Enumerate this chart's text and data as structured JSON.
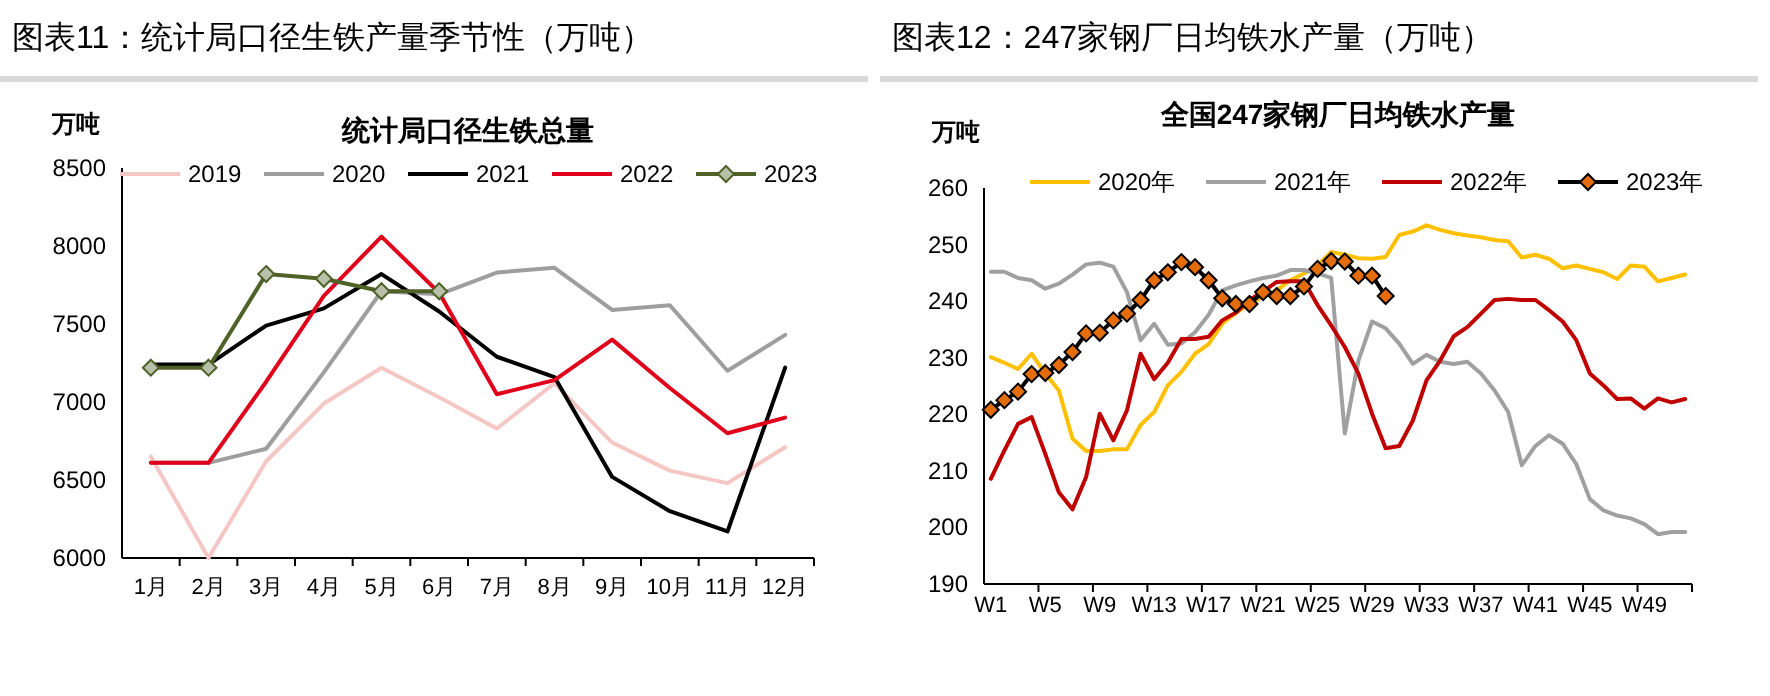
{
  "chart_data": [
    {
      "type": "line",
      "title": "图表11：统计局口径生铁产量季节性（万吨）",
      "subtitle": "统计局口径生铁总量",
      "ylabel": "万吨",
      "categories": [
        "1月",
        "2月",
        "3月",
        "4月",
        "5月",
        "6月",
        "7月",
        "8月",
        "9月",
        "10月",
        "11月",
        "12月"
      ],
      "ylim": [
        6000,
        8500
      ],
      "yticks": [
        6000,
        6500,
        7000,
        7500,
        8000,
        8500
      ],
      "legend": "top",
      "series": [
        {
          "name": "2019",
          "color": "#f4c6c4",
          "values": [
            6650,
            6000,
            6620,
            6990,
            7220,
            7030,
            6830,
            7120,
            6740,
            6560,
            6480,
            6710
          ]
        },
        {
          "name": "2020",
          "color": "#9e9e9e",
          "values": [
            6610,
            6610,
            6700,
            7190,
            7710,
            7690,
            7830,
            7860,
            7590,
            7620,
            7200,
            7430
          ]
        },
        {
          "name": "2021",
          "color": "#000000",
          "values": [
            7240,
            7240,
            7490,
            7600,
            7820,
            7580,
            7290,
            7160,
            6520,
            6300,
            6170,
            7220
          ]
        },
        {
          "name": "2022",
          "color": "#e0001b",
          "values": [
            6610,
            6610,
            7130,
            7680,
            8060,
            7700,
            7050,
            7140,
            7400,
            7090,
            6800,
            6900
          ]
        },
        {
          "name": "2023",
          "color": "#4f6228",
          "marker": "diamond",
          "values": [
            7220,
            7220,
            7820,
            7790,
            7710,
            7710,
            null,
            null,
            null,
            null,
            null,
            null
          ]
        }
      ]
    },
    {
      "type": "line",
      "title": "图表12：247家钢厂日均铁水产量（万吨）",
      "subtitle": "全国247家钢厂日均铁水产量",
      "ylabel": "万吨",
      "categories": [
        "W1",
        null,
        null,
        null,
        "W5",
        null,
        null,
        null,
        "W9",
        null,
        null,
        null,
        "W13",
        null,
        null,
        null,
        "W17",
        null,
        null,
        null,
        "W21",
        null,
        null,
        null,
        "W25",
        null,
        null,
        null,
        "W29",
        null,
        null,
        null,
        "W33",
        null,
        null,
        null,
        "W37",
        null,
        null,
        null,
        "W41",
        null,
        null,
        null,
        "W45",
        null,
        null,
        null,
        "W49",
        null,
        null,
        null
      ],
      "ylim": [
        190,
        260
      ],
      "yticks": [
        190,
        200,
        210,
        220,
        230,
        240,
        250,
        260
      ],
      "legend": "top",
      "series": [
        {
          "name": "2020年",
          "color": "#ffc000",
          "values": [
            230.1,
            229.1,
            228.0,
            230.7,
            227.2,
            224.2,
            215.7,
            213.5,
            213.5,
            213.8,
            213.8,
            218.1,
            220.4,
            225.1,
            227.5,
            230.7,
            232.4,
            236.0,
            237.9,
            239.6,
            240.8,
            241.9,
            243.7,
            244.9,
            246.3,
            248.7,
            248.2,
            247.6,
            247.5,
            247.8,
            251.7,
            252.3,
            253.4,
            252.6,
            252.0,
            251.6,
            251.3,
            250.8,
            250.6,
            247.7,
            248.2,
            247.5,
            245.8,
            246.3,
            245.7,
            245.1,
            243.9,
            246.3,
            246.1,
            243.5,
            244.1,
            244.7
          ]
        },
        {
          "name": "2021年",
          "color": "#a0a0a0",
          "values": [
            245.2,
            245.2,
            244.1,
            243.7,
            242.2,
            243.1,
            244.7,
            246.5,
            246.8,
            246.1,
            241.6,
            233.1,
            236.0,
            232.3,
            232.5,
            234.5,
            237.6,
            241.9,
            242.8,
            243.5,
            244.1,
            244.5,
            245.5,
            245.5,
            244.9,
            244.1,
            216.6,
            229.5,
            236.4,
            235.2,
            232.5,
            228.9,
            230.5,
            229.3,
            228.9,
            229.3,
            227.2,
            224.2,
            220.4,
            211.0,
            214.4,
            216.3,
            214.8,
            211.2,
            205.0,
            203.0,
            202.1,
            201.6,
            200.6,
            198.8,
            199.2,
            199.2
          ]
        },
        {
          "name": "2022年",
          "color": "#c00000",
          "values": [
            208.6,
            213.6,
            218.3,
            219.5,
            213.0,
            206.2,
            203.2,
            208.9,
            220.1,
            215.4,
            220.7,
            230.7,
            226.2,
            229.1,
            233.3,
            233.3,
            233.7,
            236.6,
            238.0,
            240.2,
            241.7,
            243.4,
            243.5,
            243.5,
            239.3,
            235.7,
            231.9,
            227.2,
            220.1,
            214.0,
            214.4,
            218.9,
            226.0,
            229.5,
            233.8,
            235.4,
            237.8,
            240.2,
            240.4,
            240.2,
            240.2,
            238.4,
            236.4,
            233.1,
            227.2,
            225.1,
            222.7,
            222.8,
            221.0,
            222.8,
            222.1,
            222.7
          ]
        },
        {
          "name": "2023年",
          "color": "#000000",
          "marker": "diamond",
          "values": [
            220.8,
            222.5,
            224.0,
            227.1,
            227.3,
            228.7,
            231.0,
            234.3,
            234.4,
            236.6,
            237.8,
            240.2,
            243.7,
            245.1,
            246.9,
            246.0,
            243.7,
            240.5,
            239.5,
            239.5,
            241.6,
            240.9,
            240.9,
            242.6,
            245.7,
            247.1,
            247.0,
            244.5,
            244.5,
            240.9,
            null,
            null,
            null,
            null,
            null,
            null,
            null,
            null,
            null,
            null,
            null,
            null,
            null,
            null,
            null,
            null,
            null,
            null,
            null,
            null,
            null,
            null
          ]
        }
      ]
    }
  ]
}
